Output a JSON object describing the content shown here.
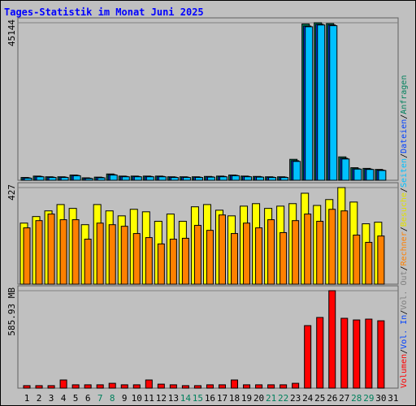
{
  "title": "Tages-Statistik im Monat Juni 2025",
  "categories": [
    "1",
    "2",
    "3",
    "4",
    "5",
    "6",
    "7",
    "8",
    "9",
    "10",
    "11",
    "12",
    "13",
    "14",
    "15",
    "16",
    "17",
    "18",
    "19",
    "20",
    "21",
    "22",
    "23",
    "24",
    "25",
    "26",
    "27",
    "28",
    "29",
    "30",
    "31"
  ],
  "category_colors": [
    "#000000",
    "#000000",
    "#000000",
    "#000000",
    "#000000",
    "#000000",
    "#00805c",
    "#00805c",
    "#000000",
    "#000000",
    "#000000",
    "#000000",
    "#000000",
    "#00805c",
    "#00805c",
    "#000000",
    "#000000",
    "#000000",
    "#000000",
    "#000000",
    "#00805c",
    "#00805c",
    "#000000",
    "#000000",
    "#000000",
    "#000000",
    "#000000",
    "#00805c",
    "#00805c",
    "#000000",
    "#000000"
  ],
  "legend": {
    "separator": "/",
    "items": [
      {
        "text": "Volumen",
        "color": "#ff0000"
      },
      {
        "text": "Vol. In",
        "color": "#0040ff"
      },
      {
        "text": "Vol. Out",
        "color": "#808080"
      },
      {
        "text": "Rechner",
        "color": "#ff8000"
      },
      {
        "text": "Besuche",
        "color": "#e0e000"
      },
      {
        "text": "Seiten",
        "color": "#00c0ff"
      },
      {
        "text": "Dateien",
        "color": "#0040ff"
      },
      {
        "text": "Anfragen",
        "color": "#00805c"
      }
    ]
  },
  "chart_data": [
    {
      "type": "bar",
      "ylim": [
        0,
        45144
      ],
      "yticks": [
        45144
      ],
      "series": [
        {
          "name": "Anfragen",
          "color": "#00805c",
          "values": [
            800,
            1200,
            1000,
            1000,
            1500,
            700,
            900,
            1800,
            1200,
            1200,
            1200,
            1200,
            1000,
            1000,
            1000,
            1100,
            1200,
            1500,
            1200,
            1100,
            1000,
            1000,
            6000,
            44800,
            45144,
            44900,
            6700,
            3600,
            3400,
            3100,
            null
          ]
        },
        {
          "name": "Dateien",
          "color": "#0040ff",
          "values": [
            700,
            1100,
            900,
            900,
            1400,
            600,
            800,
            1600,
            1100,
            1100,
            1100,
            1100,
            900,
            900,
            900,
            1000,
            1100,
            1400,
            1100,
            1000,
            900,
            900,
            5600,
            44200,
            44700,
            44500,
            6300,
            3300,
            3200,
            2900,
            null
          ]
        },
        {
          "name": "Seiten",
          "color": "#00c0ff",
          "values": [
            600,
            1000,
            800,
            800,
            1300,
            500,
            700,
            1500,
            1000,
            1000,
            1000,
            1000,
            800,
            800,
            800,
            900,
            1000,
            1300,
            1000,
            900,
            800,
            800,
            5400,
            44000,
            44500,
            44300,
            6100,
            3200,
            3100,
            2800,
            null
          ]
        }
      ]
    },
    {
      "type": "bar",
      "ylim": [
        0,
        427
      ],
      "yticks": [
        427
      ],
      "series": [
        {
          "name": "Besuche",
          "color": "#ffff00",
          "values": [
            270,
            299,
            324,
            352,
            335,
            263,
            352,
            324,
            302,
            331,
            320,
            278,
            310,
            278,
            342,
            352,
            327,
            302,
            345,
            356,
            335,
            345,
            356,
            402,
            348,
            374,
            427,
            363,
            267,
            274,
            null
          ]
        },
        {
          "name": "Rechner",
          "color": "#ff8000",
          "values": [
            249,
            281,
            310,
            285,
            285,
            199,
            270,
            263,
            256,
            224,
            206,
            178,
            199,
            203,
            260,
            238,
            306,
            224,
            270,
            249,
            285,
            228,
            281,
            310,
            278,
            331,
            324,
            217,
            185,
            213,
            null
          ]
        }
      ]
    },
    {
      "type": "bar",
      "ylim": [
        0,
        585.93
      ],
      "yticks": [
        {
          "value": 585.93,
          "label": "585.93 MB"
        }
      ],
      "series": [
        {
          "name": "Volumen",
          "color": "#ff0000",
          "values": [
            15,
            15,
            15,
            49,
            20,
            20,
            20,
            29,
            20,
            20,
            49,
            24,
            20,
            15,
            15,
            20,
            20,
            49,
            20,
            20,
            20,
            20,
            29,
            376,
            425,
            586,
            420,
            410,
            415,
            405,
            null
          ]
        }
      ]
    }
  ]
}
